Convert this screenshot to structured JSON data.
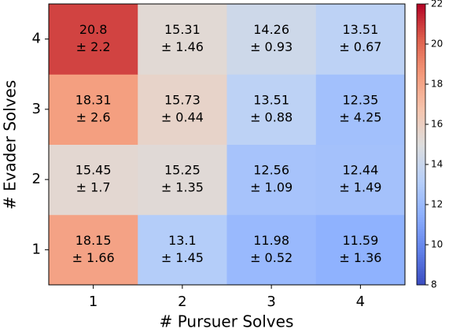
{
  "chart_data": {
    "type": "heatmap",
    "x_label": "# Pursuer Solves",
    "y_label": "# Evader Solves",
    "x_categories": [
      "1",
      "2",
      "3",
      "4"
    ],
    "y_categories": [
      "1",
      "2",
      "3",
      "4"
    ],
    "values": [
      [
        18.15,
        13.1,
        11.98,
        11.59
      ],
      [
        15.45,
        15.25,
        12.56,
        12.44
      ],
      [
        18.31,
        15.73,
        13.51,
        12.35
      ],
      [
        20.8,
        15.31,
        14.26,
        13.51
      ]
    ],
    "errors": [
      [
        1.66,
        1.45,
        0.52,
        1.36
      ],
      [
        1.7,
        1.35,
        1.09,
        1.49
      ],
      [
        2.6,
        0.44,
        0.88,
        4.25
      ],
      [
        2.2,
        1.46,
        0.93,
        0.67
      ]
    ],
    "error_labels": [
      [
        "± 1.66",
        "± 1.45",
        "± 0.52",
        "± 1.36"
      ],
      [
        "± 1.7",
        "± 1.35",
        "± 1.09",
        "± 1.49"
      ],
      [
        "± 2.6",
        "± 0.44",
        "± 0.88",
        "± 4.25"
      ],
      [
        "± 2.2",
        "± 1.46",
        "± 0.93",
        "± 0.67"
      ]
    ],
    "colormap": "coolwarm",
    "clim": [
      8,
      22
    ],
    "cticks": [
      8,
      10,
      12,
      14,
      16,
      18,
      20,
      22
    ]
  }
}
